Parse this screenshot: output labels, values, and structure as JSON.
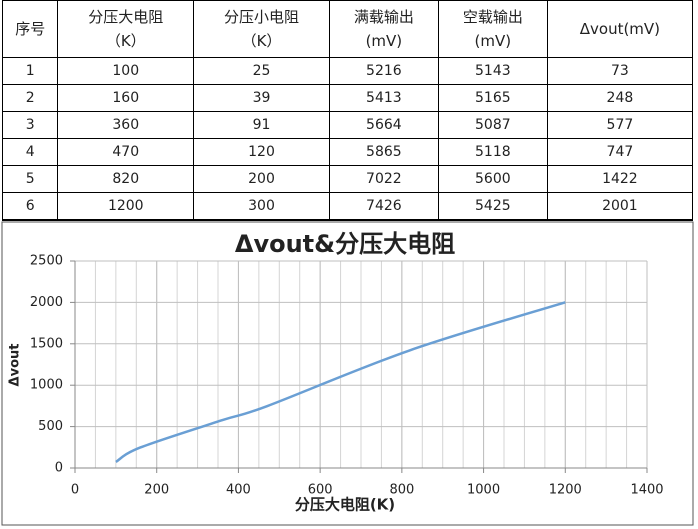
{
  "table": {
    "header": [
      [
        "序号"
      ],
      [
        "分压大电阻",
        "（K）"
      ],
      [
        "分压小电阻",
        "（K）"
      ],
      [
        "满载输出",
        "(mV)"
      ],
      [
        "空载输出",
        "(mV)"
      ],
      [
        "Δvout(mV)"
      ]
    ],
    "rows": [
      [
        "1",
        "100",
        "25",
        "5216",
        "5143",
        "73"
      ],
      [
        "2",
        "160",
        "39",
        "5413",
        "5165",
        "248"
      ],
      [
        "3",
        "360",
        "91",
        "5664",
        "5087",
        "577"
      ],
      [
        "4",
        "470",
        "120",
        "5865",
        "5118",
        "747"
      ],
      [
        "5",
        "820",
        "200",
        "7022",
        "5600",
        "1422"
      ],
      [
        "6",
        "1200",
        "300",
        "7426",
        "5425",
        "2001"
      ]
    ]
  },
  "chart_data": {
    "type": "line",
    "title": "Δvout&分压大电阻",
    "x_label": "分压大电阻(K)",
    "y_label": "Δvout",
    "x": [
      100,
      160,
      360,
      470,
      820,
      1200
    ],
    "series": [
      {
        "name": "Δvout",
        "color": "#6a9fd4",
        "values": [
          73,
          248,
          577,
          747,
          1422,
          2001
        ]
      }
    ],
    "xlim": [
      0,
      1400
    ],
    "xticks": [
      0,
      200,
      400,
      600,
      800,
      1000,
      1200,
      1400
    ],
    "ylim": [
      0,
      2500
    ],
    "yticks": [
      0,
      500,
      1000,
      1500,
      2000,
      2500
    ],
    "grid": true,
    "x_minor_grid": 50,
    "legend": false
  }
}
